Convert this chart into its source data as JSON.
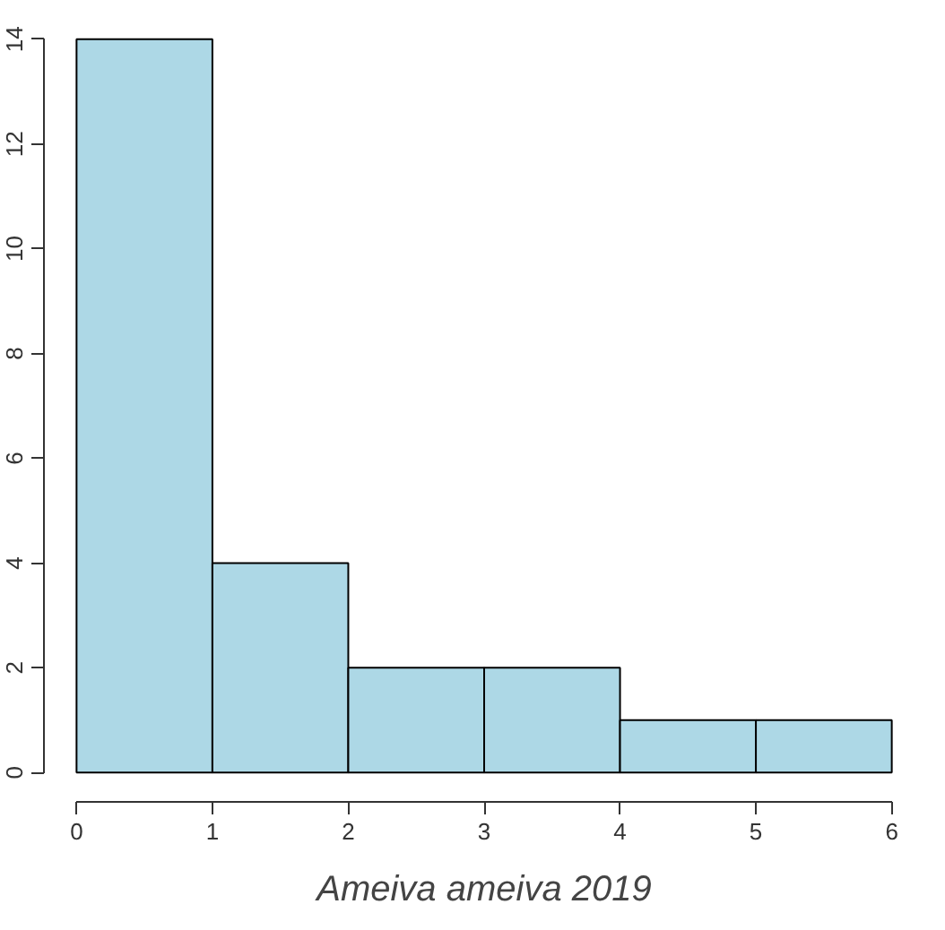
{
  "chart_data": {
    "type": "histogram",
    "xlabel": "Ameiva ameiva 2019",
    "bins": [
      0,
      1,
      2,
      3,
      4,
      5,
      6
    ],
    "values": [
      14,
      4,
      2,
      2,
      1,
      1
    ],
    "color": "#add8e6",
    "xlim": [
      0,
      6
    ],
    "xticks": [
      0,
      1,
      2,
      3,
      4,
      5,
      6
    ],
    "ylim": [
      0,
      14
    ],
    "yticks": [
      0,
      2,
      4,
      6,
      8,
      10,
      12,
      14
    ],
    "grid": false
  }
}
